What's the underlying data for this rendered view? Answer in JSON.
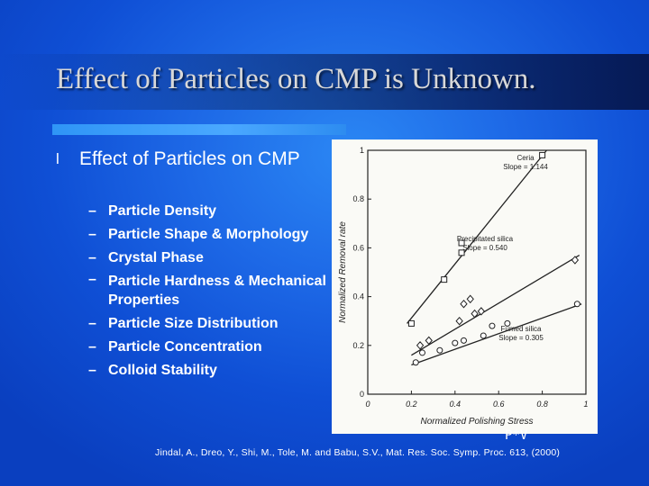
{
  "slide": {
    "title": "Effect of Particles on CMP is Unknown.",
    "bullet_symbol": "l",
    "bullet": "Effect of Particles on CMP",
    "dash": "–",
    "sub_bullets": [
      "Particle Density",
      "Particle Shape & Morphology",
      "Crystal Phase",
      "Particle Hardness & Mechanical Properties",
      "Particle Size Distribution",
      "Particle Concentration",
      "Colloid Stability"
    ],
    "pv_label": "P*V",
    "citation": "Jindal, A., Dreo, Y., Shi, M., Tole, M. and Babu, S.V., Mat. Res. Soc. Symp. Proc. 613, (2000)",
    "colors": {
      "background": "#1d68e6",
      "title": "#d8d8d8",
      "rule": "#4aa8ff",
      "text": "#ffffff"
    }
  },
  "chart_data": {
    "type": "scatter",
    "xlabel": "Normalized Polishing Stress",
    "ylabel": "Normalized Removal rate",
    "xlim": [
      0,
      1
    ],
    "ylim": [
      0,
      1
    ],
    "x_ticks": [
      "0",
      "0.2",
      "0.4",
      "0.6",
      "0.8",
      "1"
    ],
    "y_ticks": [
      "0",
      "0.2",
      "0.4",
      "0.6",
      "0.8",
      "1"
    ],
    "series": [
      {
        "name": "Ceria",
        "annotation": [
          "Ceria",
          "Slope = 1.144"
        ],
        "marker": "square",
        "points": [
          [
            0.2,
            0.29
          ],
          [
            0.35,
            0.47
          ],
          [
            0.43,
            0.58
          ],
          [
            0.43,
            0.62
          ],
          [
            0.8,
            0.98
          ]
        ],
        "fit": [
          [
            0.18,
            0.29
          ],
          [
            0.82,
            1.0
          ]
        ]
      },
      {
        "name": "Precipitated silica",
        "annotation": [
          "Precipitated silica",
          "Slope = 0.540"
        ],
        "marker": "diamond",
        "points": [
          [
            0.24,
            0.2
          ],
          [
            0.28,
            0.22
          ],
          [
            0.42,
            0.3
          ],
          [
            0.44,
            0.37
          ],
          [
            0.47,
            0.39
          ],
          [
            0.49,
            0.33
          ],
          [
            0.52,
            0.34
          ],
          [
            0.95,
            0.55
          ]
        ],
        "fit": [
          [
            0.2,
            0.16
          ],
          [
            0.97,
            0.57
          ]
        ]
      },
      {
        "name": "Fumed silica",
        "annotation": [
          "Fumed silica",
          "Slope = 0.305"
        ],
        "marker": "circle",
        "points": [
          [
            0.22,
            0.13
          ],
          [
            0.25,
            0.17
          ],
          [
            0.33,
            0.18
          ],
          [
            0.4,
            0.21
          ],
          [
            0.44,
            0.22
          ],
          [
            0.53,
            0.24
          ],
          [
            0.57,
            0.28
          ],
          [
            0.64,
            0.29
          ],
          [
            0.96,
            0.37
          ]
        ],
        "fit": [
          [
            0.2,
            0.12
          ],
          [
            0.98,
            0.37
          ]
        ]
      }
    ]
  }
}
